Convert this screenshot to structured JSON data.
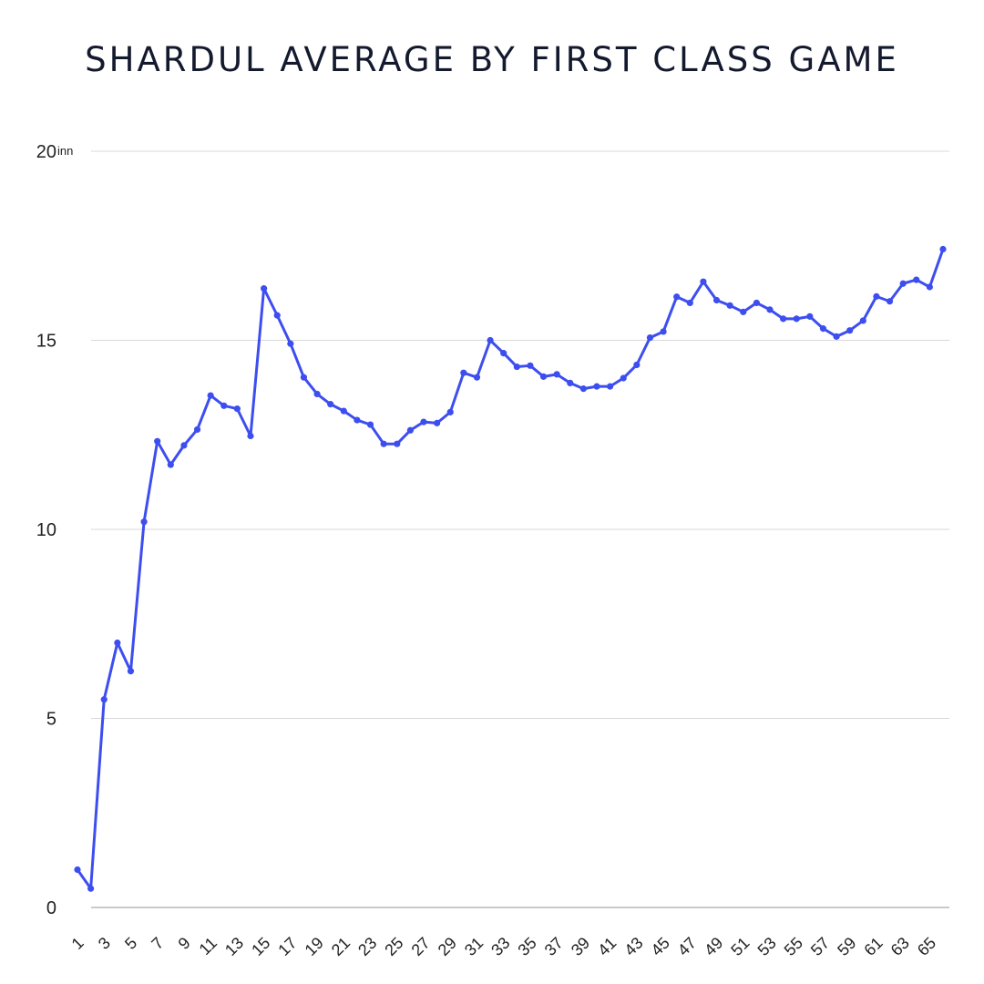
{
  "chart_data": {
    "type": "line",
    "title": "SHARDUL AVERAGE BY FIRST CLASS GAME",
    "xlabel": "",
    "ylabel": "",
    "y_unit": "inn",
    "ylim": [
      0,
      20
    ],
    "yticks": [
      0,
      5,
      10,
      15,
      20
    ],
    "grid": true,
    "legend": "none",
    "line_color": "#3d4ef0",
    "x": [
      1,
      2,
      3,
      4,
      5,
      6,
      7,
      8,
      9,
      10,
      11,
      12,
      13,
      14,
      15,
      16,
      17,
      18,
      19,
      20,
      21,
      22,
      23,
      24,
      25,
      26,
      27,
      28,
      29,
      30,
      31,
      32,
      33,
      34,
      35,
      36,
      37,
      38,
      39,
      40,
      41,
      42,
      43,
      44,
      45,
      46,
      47,
      48,
      49,
      50,
      51,
      52,
      53,
      54,
      55,
      56,
      57,
      58,
      59,
      60,
      61,
      62,
      63,
      64,
      65,
      66
    ],
    "x_tick_labels": [
      "1",
      "3",
      "5",
      "7",
      "9",
      "11",
      "13",
      "15",
      "17",
      "19",
      "21",
      "23",
      "25",
      "27",
      "29",
      "31",
      "33",
      "35",
      "37",
      "39",
      "41",
      "43",
      "45",
      "47",
      "49",
      "51",
      "53",
      "55",
      "57",
      "59",
      "61",
      "63",
      "65"
    ],
    "series": [
      {
        "values": [
          1.0,
          0.5,
          5.5,
          7.0,
          6.25,
          10.2,
          12.33,
          11.71,
          12.22,
          12.64,
          13.54,
          13.27,
          13.19,
          12.47,
          16.37,
          15.66,
          14.91,
          14.02,
          13.58,
          13.31,
          13.13,
          12.89,
          12.77,
          12.26,
          12.26,
          12.62,
          12.84,
          12.81,
          13.1,
          14.14,
          14.02,
          15.0,
          14.66,
          14.3,
          14.33,
          14.04,
          14.1,
          13.87,
          13.72,
          13.78,
          13.78,
          14.0,
          14.35,
          15.07,
          15.23,
          16.15,
          15.99,
          16.55,
          16.06,
          15.92,
          15.75,
          15.99,
          15.81,
          15.57,
          15.57,
          15.63,
          15.31,
          15.1,
          15.26,
          15.52,
          16.16,
          16.03,
          16.5,
          16.6,
          16.41,
          17.41
        ]
      }
    ]
  }
}
